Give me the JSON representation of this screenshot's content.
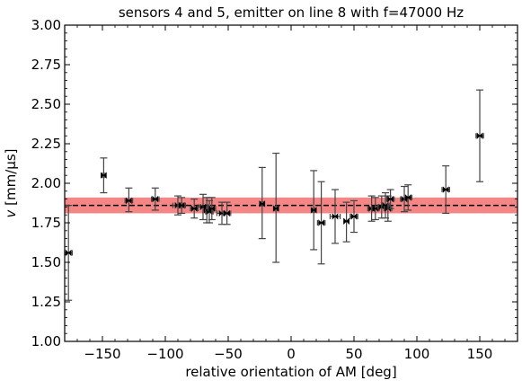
{
  "chart_data": {
    "type": "scatter",
    "title": "sensors 4 and 5, emitter on line 8 with f=47000 Hz",
    "xlabel": "relative orientation of AM [deg]",
    "ylabel_var": "v",
    "ylabel_unit": " [mm/μs]",
    "xlim": [
      -180,
      180
    ],
    "ylim": [
      1.0,
      3.0
    ],
    "xticks": [
      -150,
      -100,
      -50,
      0,
      50,
      100,
      150
    ],
    "xtick_labels": [
      "−150",
      "−100",
      "−50",
      "0",
      "50",
      "100",
      "150"
    ],
    "yticks": [
      1.0,
      1.25,
      1.5,
      1.75,
      2.0,
      2.25,
      2.5,
      2.75,
      3.0
    ],
    "ytick_labels": [
      "1.00",
      "1.25",
      "1.50",
      "1.75",
      "2.00",
      "2.25",
      "2.50",
      "2.75",
      "3.00"
    ],
    "grid": false,
    "mean_line": 1.86,
    "band": [
      1.81,
      1.91
    ],
    "colors": {
      "band": "#f47f7f",
      "markers": "#000000",
      "errorbars": "#444444"
    },
    "points": [
      {
        "x": -177,
        "y": 1.56,
        "yerr_low": 0.3,
        "yerr_high": 0.3,
        "xerr": 3
      },
      {
        "x": -149,
        "y": 2.05,
        "yerr_low": 0.11,
        "yerr_high": 0.11,
        "xerr": 1
      },
      {
        "x": -129,
        "y": 1.89,
        "yerr_low": 0.07,
        "yerr_high": 0.08,
        "xerr": 3
      },
      {
        "x": -108,
        "y": 1.9,
        "yerr_low": 0.07,
        "yerr_high": 0.07,
        "xerr": 3
      },
      {
        "x": -90,
        "y": 1.86,
        "yerr_low": 0.06,
        "yerr_high": 0.06,
        "xerr": 4
      },
      {
        "x": -87,
        "y": 1.86,
        "yerr_low": 0.05,
        "yerr_high": 0.05,
        "xerr": 3
      },
      {
        "x": -77,
        "y": 1.84,
        "yerr_low": 0.06,
        "yerr_high": 0.06,
        "xerr": 3
      },
      {
        "x": -70,
        "y": 1.85,
        "yerr_low": 0.08,
        "yerr_high": 0.08,
        "xerr": 4
      },
      {
        "x": -67,
        "y": 1.83,
        "yerr_low": 0.08,
        "yerr_high": 0.08,
        "xerr": 3
      },
      {
        "x": -65,
        "y": 1.82,
        "yerr_low": 0.07,
        "yerr_high": 0.07,
        "xerr": 3
      },
      {
        "x": -63,
        "y": 1.84,
        "yerr_low": 0.07,
        "yerr_high": 0.07,
        "xerr": 3
      },
      {
        "x": -55,
        "y": 1.81,
        "yerr_low": 0.07,
        "yerr_high": 0.07,
        "xerr": 4
      },
      {
        "x": -51,
        "y": 1.81,
        "yerr_low": 0.07,
        "yerr_high": 0.07,
        "xerr": 3
      },
      {
        "x": -23,
        "y": 1.87,
        "yerr_low": 0.22,
        "yerr_high": 0.23,
        "xerr": 1
      },
      {
        "x": -12,
        "y": 1.84,
        "yerr_low": 0.34,
        "yerr_high": 0.35,
        "xerr": 1
      },
      {
        "x": 18,
        "y": 1.83,
        "yerr_low": 0.25,
        "yerr_high": 0.25,
        "xerr": 1
      },
      {
        "x": 24,
        "y": 1.75,
        "yerr_low": 0.26,
        "yerr_high": 0.26,
        "xerr": 3
      },
      {
        "x": 35,
        "y": 1.79,
        "yerr_low": 0.17,
        "yerr_high": 0.17,
        "xerr": 4
      },
      {
        "x": 44,
        "y": 1.76,
        "yerr_low": 0.13,
        "yerr_high": 0.12,
        "xerr": 2
      },
      {
        "x": 50,
        "y": 1.79,
        "yerr_low": 0.1,
        "yerr_high": 0.1,
        "xerr": 3
      },
      {
        "x": 64,
        "y": 1.84,
        "yerr_low": 0.08,
        "yerr_high": 0.08,
        "xerr": 3
      },
      {
        "x": 67,
        "y": 1.84,
        "yerr_low": 0.07,
        "yerr_high": 0.07,
        "xerr": 3
      },
      {
        "x": 72,
        "y": 1.85,
        "yerr_low": 0.07,
        "yerr_high": 0.07,
        "xerr": 3
      },
      {
        "x": 75,
        "y": 1.86,
        "yerr_low": 0.08,
        "yerr_high": 0.08,
        "xerr": 3
      },
      {
        "x": 77,
        "y": 1.84,
        "yerr_low": 0.08,
        "yerr_high": 0.08,
        "xerr": 3
      },
      {
        "x": 79,
        "y": 1.9,
        "yerr_low": 0.06,
        "yerr_high": 0.06,
        "xerr": 3
      },
      {
        "x": 90,
        "y": 1.9,
        "yerr_low": 0.08,
        "yerr_high": 0.08,
        "xerr": 3
      },
      {
        "x": 93,
        "y": 1.91,
        "yerr_low": 0.08,
        "yerr_high": 0.08,
        "xerr": 3
      },
      {
        "x": 123,
        "y": 1.96,
        "yerr_low": 0.15,
        "yerr_high": 0.15,
        "xerr": 3
      },
      {
        "x": 150,
        "y": 2.3,
        "yerr_low": 0.29,
        "yerr_high": 0.29,
        "xerr": 3
      }
    ]
  }
}
